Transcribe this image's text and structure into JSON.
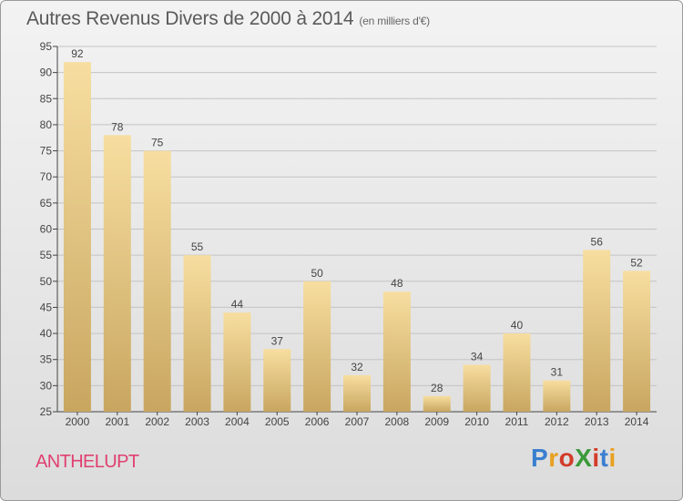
{
  "title": "Autres Revenus Divers de 2000 à 2014",
  "subtitle": "(en milliers d'€)",
  "city": "ANTHELUPT",
  "logo": {
    "letters": [
      {
        "ch": "P",
        "color": "#3a7fd0"
      },
      {
        "ch": "r",
        "color": "#e8a020"
      },
      {
        "ch": "o",
        "color": "#d23c2a"
      },
      {
        "ch": "X",
        "color": "#3a9a3a"
      },
      {
        "ch": "i",
        "color": "#d23c2a"
      },
      {
        "ch": "t",
        "color": "#3a7fd0"
      },
      {
        "ch": "i",
        "color": "#e8a020"
      }
    ]
  },
  "colors": {
    "bar_top": "#f7dea0",
    "bar_bottom": "#c8a660",
    "city": "#e04070"
  },
  "chart_data": {
    "type": "bar",
    "categories": [
      "2000",
      "2001",
      "2002",
      "2003",
      "2004",
      "2005",
      "2006",
      "2007",
      "2008",
      "2009",
      "2010",
      "2011",
      "2012",
      "2013",
      "2014"
    ],
    "values": [
      92,
      78,
      75,
      55,
      44,
      37,
      50,
      32,
      48,
      28,
      34,
      40,
      31,
      56,
      52
    ],
    "ylim": [
      25,
      95
    ],
    "yticks": [
      25,
      30,
      35,
      40,
      45,
      50,
      55,
      60,
      65,
      70,
      75,
      80,
      85,
      90,
      95
    ],
    "grid": "horizontal"
  }
}
